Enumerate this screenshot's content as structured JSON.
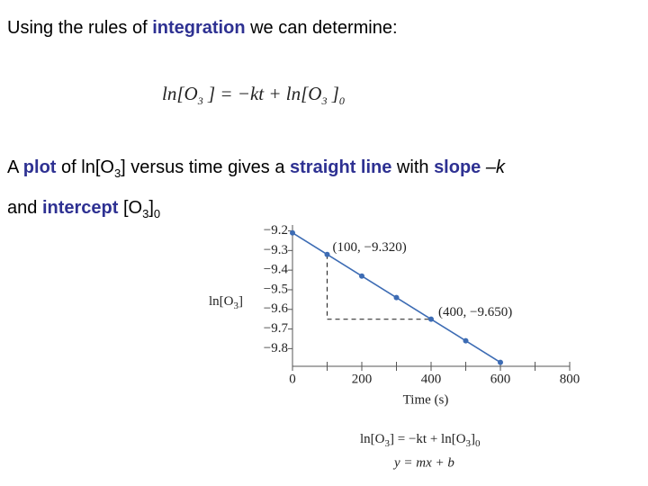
{
  "slide": {
    "intro": [
      "Using the rules of ",
      "integration",
      " we can determine:"
    ],
    "equation": [
      "ln[O",
      "3",
      " ] = −kt + ln[O",
      "3",
      " ]",
      "0"
    ],
    "statement_line1": [
      "A ",
      "plot",
      " of ln[O",
      "3",
      "] versus time gives a ",
      "straight line",
      " with ",
      "slope",
      " –k"
    ],
    "statement_line2": [
      "and ",
      "intercept",
      " [O",
      "3",
      "]",
      "0"
    ],
    "relation": [
      "ln[O",
      "3",
      "] = −kt + ln[O",
      "3",
      "]",
      "0"
    ],
    "relation2": "y = mx + b"
  },
  "chart_data": {
    "type": "line",
    "x": [
      0,
      100,
      200,
      300,
      400,
      500,
      600
    ],
    "series": [
      {
        "color": "#3d6cb4",
        "values": [
          -9.21,
          -9.32,
          -9.43,
          -9.54,
          -9.65,
          -9.76,
          -9.87
        ]
      }
    ],
    "xlim": [
      0,
      800
    ],
    "xticks": [
      0,
      200,
      400,
      600,
      800
    ],
    "ylim": [
      -9.89,
      -9.17
    ],
    "yticks": [
      {
        "value": -9.2,
        "label": "−9.2"
      },
      {
        "value": -9.3,
        "label": "−9.3"
      },
      {
        "value": -9.4,
        "label": "−9.4"
      },
      {
        "value": -9.5,
        "label": "−9.5"
      },
      {
        "value": -9.6,
        "label": "−9.6"
      },
      {
        "value": -9.7,
        "label": "−9.7"
      },
      {
        "value": -9.8,
        "label": "−9.8"
      }
    ],
    "xlabel": "Time (s)",
    "ylabel": [
      "ln[O",
      "3",
      "]"
    ],
    "annotations": [
      "(100, −9.320)",
      "(400, −9.650)"
    ]
  }
}
